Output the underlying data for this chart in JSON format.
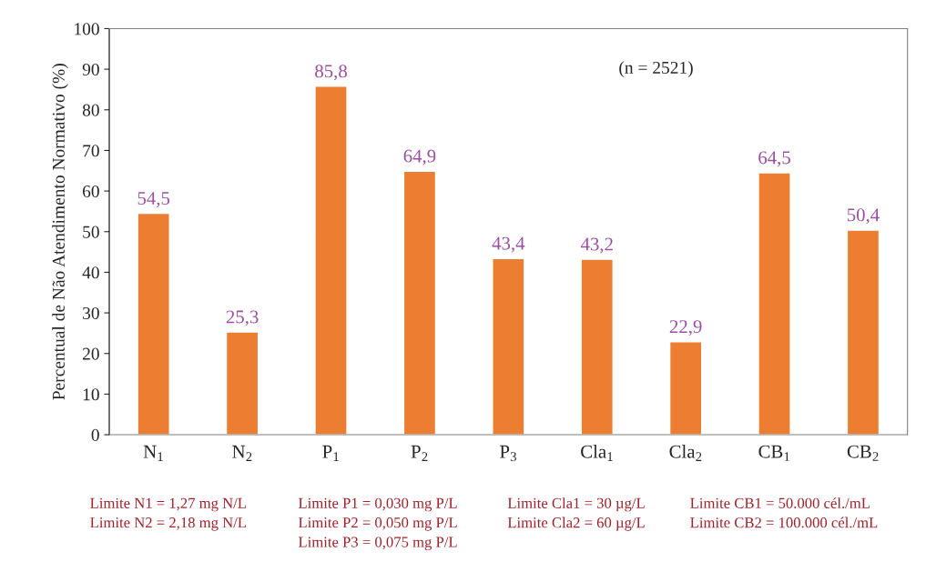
{
  "chart_data": {
    "type": "bar",
    "ylabel": "Percentual de Não Atendimento Normativo (%)",
    "categories": [
      "N$_{1}$",
      "N$_{2}$",
      "P$_{1}$",
      "P$_{2}$",
      "P$_{3}$",
      "Cla$_{1}$",
      "Cla$_{2}$",
      "CB$_{1}$",
      "CB$_{2}$"
    ],
    "values": [
      54.5,
      25.3,
      85.8,
      64.9,
      43.4,
      43.2,
      22.9,
      64.5,
      50.4
    ],
    "value_labels": [
      "54,5",
      "25,3",
      "85,8",
      "64,9",
      "43,4",
      "43,2",
      "22,9",
      "64,5",
      "50,4"
    ],
    "color": "#ed7d31",
    "ylim": [
      0,
      100
    ],
    "yticks": [
      0,
      10,
      20,
      30,
      40,
      50,
      60,
      70,
      80,
      90,
      100
    ],
    "grid": false,
    "annotations": [
      "(n = 2521)",
      "Limite N1 = 1,27 mg N/L",
      "Limite P1 = 0,030 mg P/L",
      "Limite Cla1 = 30 µg/L",
      "Limite CB1 = 50.000 cél./mL",
      "Limite N2 = 2,18 mg N/L",
      "Limite P2 = 0,050 mg P/L",
      "Limite Cla2 = 60 µg/L",
      "Limite CB2 = 100.000 cél./mL",
      "Limite P3 = 0,075 mg P/L"
    ]
  }
}
